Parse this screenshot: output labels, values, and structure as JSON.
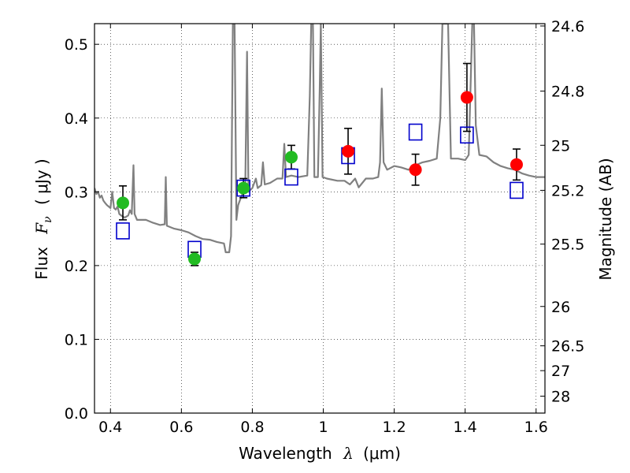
{
  "chart_data": {
    "type": "scatter",
    "xlabel": "Wavelength",
    "xlabel_symbol": "λ",
    "xlabel_unit": "(μm)",
    "ylabel": "Flux",
    "ylabel_symbol": "F",
    "ylabel_subscript": "ν",
    "ylabel_unit": "( μJy )",
    "y2label": "Magnitude (AB)",
    "xlim": [
      0.355,
      1.625
    ],
    "ylim": [
      0.0,
      0.528
    ],
    "grid": true,
    "grid_style": "dotted",
    "x_ticks": [
      0.4,
      0.6,
      0.8,
      1.0,
      1.2,
      1.4,
      1.6
    ],
    "x_tick_labels": [
      "0.4",
      "0.6",
      "0.8",
      "1",
      "1.2",
      "1.4",
      "1.6"
    ],
    "y_ticks": [
      0.0,
      0.1,
      0.2,
      0.3,
      0.4,
      0.5
    ],
    "y_tick_labels": [
      "0.0",
      "0.1",
      "0.2",
      "0.3",
      "0.4",
      "0.5"
    ],
    "y2_ticks": [
      24.6,
      24.8,
      25,
      25.2,
      25.5,
      26,
      26.5,
      27,
      28
    ],
    "y2_tick_labels": [
      "24.6",
      "24.8",
      "25",
      "25.2",
      "25.5",
      "26",
      "26.5",
      "27",
      "28"
    ],
    "colors": {
      "sed": "#808080",
      "green": "#22bb22",
      "red": "#ff0000",
      "model": "#0000cc",
      "errorbar": "#000000"
    },
    "series": [
      {
        "kind": "sed_line",
        "points": [
          [
            0.355,
            0.305
          ],
          [
            0.36,
            0.297
          ],
          [
            0.365,
            0.3
          ],
          [
            0.37,
            0.292
          ],
          [
            0.375,
            0.295
          ],
          [
            0.38,
            0.288
          ],
          [
            0.385,
            0.285
          ],
          [
            0.39,
            0.282
          ],
          [
            0.395,
            0.28
          ],
          [
            0.4,
            0.278
          ],
          [
            0.405,
            0.3
          ],
          [
            0.41,
            0.278
          ],
          [
            0.415,
            0.276
          ],
          [
            0.42,
            0.28
          ],
          [
            0.425,
            0.27
          ],
          [
            0.43,
            0.268
          ],
          [
            0.44,
            0.265
          ],
          [
            0.45,
            0.268
          ],
          [
            0.455,
            0.275
          ],
          [
            0.46,
            0.27
          ],
          [
            0.465,
            0.336
          ],
          [
            0.468,
            0.27
          ],
          [
            0.475,
            0.262
          ],
          [
            0.49,
            0.262
          ],
          [
            0.5,
            0.262
          ],
          [
            0.52,
            0.258
          ],
          [
            0.54,
            0.255
          ],
          [
            0.553,
            0.256
          ],
          [
            0.556,
            0.32
          ],
          [
            0.559,
            0.254
          ],
          [
            0.58,
            0.25
          ],
          [
            0.6,
            0.248
          ],
          [
            0.62,
            0.245
          ],
          [
            0.64,
            0.24
          ],
          [
            0.66,
            0.236
          ],
          [
            0.68,
            0.235
          ],
          [
            0.7,
            0.232
          ],
          [
            0.72,
            0.23
          ],
          [
            0.725,
            0.218
          ],
          [
            0.735,
            0.218
          ],
          [
            0.74,
            0.24
          ],
          [
            0.745,
            0.528
          ],
          [
            0.75,
            0.528
          ],
          [
            0.755,
            0.262
          ],
          [
            0.76,
            0.282
          ],
          [
            0.77,
            0.295
          ],
          [
            0.78,
            0.303
          ],
          [
            0.785,
            0.49
          ],
          [
            0.789,
            0.3
          ],
          [
            0.8,
            0.305
          ],
          [
            0.81,
            0.318
          ],
          [
            0.815,
            0.305
          ],
          [
            0.825,
            0.309
          ],
          [
            0.83,
            0.34
          ],
          [
            0.835,
            0.31
          ],
          [
            0.85,
            0.312
          ],
          [
            0.87,
            0.318
          ],
          [
            0.885,
            0.318
          ],
          [
            0.89,
            0.365
          ],
          [
            0.895,
            0.32
          ],
          [
            0.91,
            0.322
          ],
          [
            0.93,
            0.32
          ],
          [
            0.955,
            0.322
          ],
          [
            0.962,
            0.43
          ],
          [
            0.966,
            0.528
          ],
          [
            0.971,
            0.528
          ],
          [
            0.975,
            0.32
          ],
          [
            0.985,
            0.32
          ],
          [
            0.99,
            0.44
          ],
          [
            0.993,
            0.528
          ],
          [
            0.998,
            0.32
          ],
          [
            1.01,
            0.318
          ],
          [
            1.04,
            0.315
          ],
          [
            1.06,
            0.315
          ],
          [
            1.075,
            0.31
          ],
          [
            1.09,
            0.318
          ],
          [
            1.1,
            0.306
          ],
          [
            1.12,
            0.318
          ],
          [
            1.14,
            0.318
          ],
          [
            1.155,
            0.32
          ],
          [
            1.16,
            0.34
          ],
          [
            1.165,
            0.44
          ],
          [
            1.17,
            0.34
          ],
          [
            1.18,
            0.33
          ],
          [
            1.2,
            0.335
          ],
          [
            1.22,
            0.333
          ],
          [
            1.24,
            0.33
          ],
          [
            1.26,
            0.336
          ],
          [
            1.28,
            0.34
          ],
          [
            1.3,
            0.342
          ],
          [
            1.32,
            0.345
          ],
          [
            1.33,
            0.4
          ],
          [
            1.336,
            0.528
          ],
          [
            1.352,
            0.528
          ],
          [
            1.36,
            0.345
          ],
          [
            1.38,
            0.345
          ],
          [
            1.4,
            0.343
          ],
          [
            1.41,
            0.35
          ],
          [
            1.42,
            0.528
          ],
          [
            1.425,
            0.528
          ],
          [
            1.43,
            0.39
          ],
          [
            1.44,
            0.35
          ],
          [
            1.46,
            0.348
          ],
          [
            1.48,
            0.34
          ],
          [
            1.5,
            0.335
          ],
          [
            1.52,
            0.332
          ],
          [
            1.54,
            0.33
          ],
          [
            1.56,
            0.325
          ],
          [
            1.58,
            0.322
          ],
          [
            1.6,
            0.32
          ],
          [
            1.625,
            0.32
          ]
        ]
      },
      {
        "kind": "observed",
        "color": "green",
        "points": [
          {
            "x": 0.435,
            "y": 0.285,
            "err": 0.023
          },
          {
            "x": 0.637,
            "y": 0.209,
            "err": 0.009
          },
          {
            "x": 0.775,
            "y": 0.305,
            "err": 0.013
          },
          {
            "x": 0.91,
            "y": 0.347,
            "err": 0.016
          }
        ]
      },
      {
        "kind": "observed",
        "color": "red",
        "points": [
          {
            "x": 1.07,
            "y": 0.355,
            "err": 0.031
          },
          {
            "x": 1.26,
            "y": 0.33,
            "err": 0.021
          },
          {
            "x": 1.405,
            "y": 0.428,
            "err": 0.046
          },
          {
            "x": 1.545,
            "y": 0.337,
            "err": 0.021
          }
        ]
      },
      {
        "kind": "model_photometry",
        "color": "model",
        "points": [
          {
            "x": 0.435,
            "y": 0.247
          },
          {
            "x": 0.637,
            "y": 0.222
          },
          {
            "x": 0.775,
            "y": 0.305
          },
          {
            "x": 0.91,
            "y": 0.32
          },
          {
            "x": 1.07,
            "y": 0.349
          },
          {
            "x": 1.26,
            "y": 0.381
          },
          {
            "x": 1.405,
            "y": 0.377
          },
          {
            "x": 1.545,
            "y": 0.302
          }
        ]
      }
    ]
  }
}
